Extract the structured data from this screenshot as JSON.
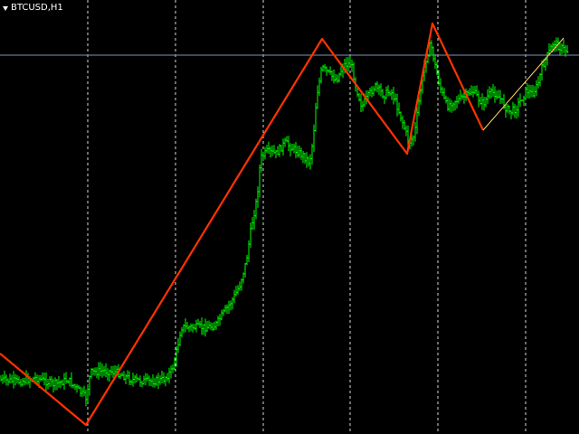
{
  "chart": {
    "symbol_timeframe": "BTCUSD,H1",
    "colors": {
      "background": "#000000",
      "candles": "#00ff00",
      "grid": "#ffffff",
      "zigzag_main": "#ff3300",
      "zigzag_last": "#ffd966",
      "price_line": "#7f93b8"
    }
  }
}
